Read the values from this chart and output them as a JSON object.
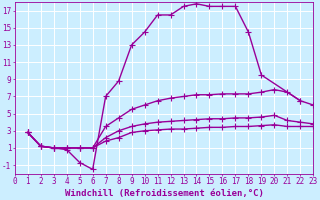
{
  "background_color": "#cceeff",
  "grid_color": "#ffffff",
  "line_color": "#990099",
  "line_width": 1.0,
  "marker": "+",
  "marker_size": 4,
  "marker_edge_width": 0.8,
  "xlabel": "Windchill (Refroidissement éolien,°C)",
  "xlabel_fontsize": 6.5,
  "xlim": [
    0,
    23
  ],
  "ylim": [
    -2,
    18
  ],
  "xticks": [
    0,
    1,
    2,
    3,
    4,
    5,
    6,
    7,
    8,
    9,
    10,
    11,
    12,
    13,
    14,
    15,
    16,
    17,
    18,
    19,
    20,
    21,
    22,
    23
  ],
  "yticks": [
    -1,
    1,
    3,
    5,
    7,
    9,
    11,
    13,
    15,
    17
  ],
  "tick_fontsize": 5.5,
  "curves": [
    {
      "x": [
        1,
        2,
        3,
        4,
        5,
        6,
        7,
        8,
        9,
        10,
        11,
        12,
        13,
        14,
        15,
        16,
        17,
        18,
        19,
        22
      ],
      "y": [
        2.8,
        1.2,
        1.0,
        0.8,
        -0.7,
        -1.5,
        7.0,
        8.8,
        13.0,
        14.5,
        16.5,
        16.5,
        17.5,
        17.8,
        17.5,
        17.5,
        17.5,
        14.5,
        9.5,
        6.5
      ]
    },
    {
      "x": [
        1,
        2,
        3,
        4,
        5,
        6,
        7,
        8,
        9,
        10,
        11,
        12,
        13,
        14,
        15,
        16,
        17,
        18,
        19,
        20,
        21,
        22,
        23
      ],
      "y": [
        2.8,
        1.2,
        1.0,
        1.0,
        1.0,
        1.0,
        3.5,
        4.5,
        5.5,
        6.0,
        6.5,
        6.8,
        7.0,
        7.2,
        7.2,
        7.3,
        7.3,
        7.3,
        7.5,
        7.8,
        7.5,
        6.5,
        6.0
      ]
    },
    {
      "x": [
        1,
        2,
        3,
        4,
        5,
        6,
        7,
        8,
        9,
        10,
        11,
        12,
        13,
        14,
        15,
        16,
        17,
        18,
        19,
        20,
        21,
        22,
        23
      ],
      "y": [
        2.8,
        1.2,
        1.0,
        1.0,
        1.0,
        1.0,
        2.2,
        3.0,
        3.5,
        3.8,
        4.0,
        4.1,
        4.2,
        4.3,
        4.4,
        4.4,
        4.5,
        4.5,
        4.6,
        4.8,
        4.2,
        4.0,
        3.8
      ]
    },
    {
      "x": [
        1,
        2,
        3,
        4,
        5,
        6,
        7,
        8,
        9,
        10,
        11,
        12,
        13,
        14,
        15,
        16,
        17,
        18,
        19,
        20,
        21,
        22,
        23
      ],
      "y": [
        2.8,
        1.2,
        1.0,
        1.0,
        1.0,
        1.0,
        1.8,
        2.2,
        2.8,
        3.0,
        3.1,
        3.2,
        3.2,
        3.3,
        3.4,
        3.4,
        3.5,
        3.5,
        3.6,
        3.7,
        3.5,
        3.5,
        3.5
      ]
    }
  ]
}
